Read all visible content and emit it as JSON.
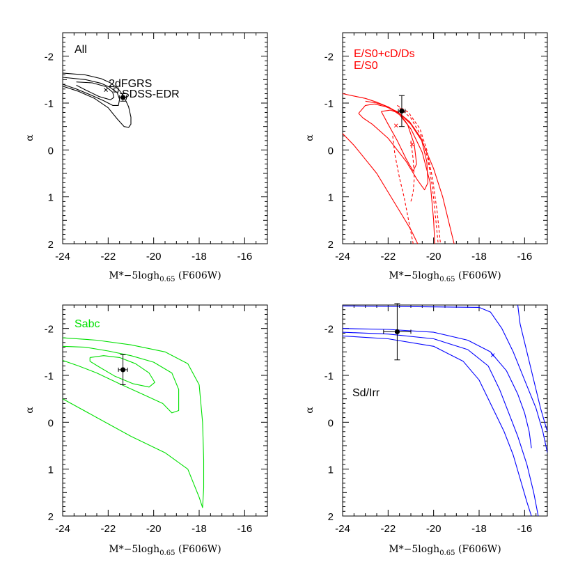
{
  "chart_data": [
    {
      "type": "contour",
      "id": "all",
      "color": "#000000",
      "xlim": [
        -24,
        -15
      ],
      "ylim": [
        2,
        -2.5
      ],
      "xticks": [
        -24,
        -22,
        -20,
        -18,
        -16
      ],
      "yticks": [
        -2,
        -1,
        0,
        1,
        2
      ],
      "xlabel": {
        "main": "M*−5logh",
        "sub": "0.65",
        "suffix": " (F606W)"
      },
      "ylabel": "α",
      "panel_label": {
        "text": "All",
        "color": "#000000"
      },
      "annotations": [
        {
          "text": "2dFGRS",
          "x": -22.1,
          "y": -1.27
        },
        {
          "text": "SDSS-EDR",
          "x": -21.75,
          "y": -1.08
        }
      ],
      "best_fit": {
        "x": -22.1,
        "y": -1.28
      },
      "open_square": {
        "x": -21.65,
        "y": -1.28
      },
      "point": {
        "x": -21.35,
        "y": -1.12,
        "xerr": 0.15,
        "yerr": 0.08
      },
      "contours": [
        {
          "style": "solid",
          "points": [
            [
              -24,
              -1.64
            ],
            [
              -23,
              -1.6
            ],
            [
              -22.3,
              -1.52
            ],
            [
              -21.9,
              -1.43
            ],
            [
              -21.55,
              -1.3
            ],
            [
              -21.3,
              -1.13
            ],
            [
              -21.1,
              -0.92
            ],
            [
              -21.0,
              -0.7
            ],
            [
              -21.0,
              -0.55
            ],
            [
              -21.1,
              -0.48
            ],
            [
              -21.3,
              -0.5
            ],
            [
              -21.6,
              -0.66
            ],
            [
              -22.0,
              -0.9
            ],
            [
              -22.6,
              -1.1
            ],
            [
              -23.3,
              -1.25
            ],
            [
              -24,
              -1.36
            ]
          ]
        },
        {
          "style": "solid",
          "points": [
            [
              -24,
              -1.55
            ],
            [
              -23,
              -1.5
            ],
            [
              -22.3,
              -1.42
            ],
            [
              -21.9,
              -1.33
            ],
            [
              -21.6,
              -1.22
            ],
            [
              -21.5,
              -1.08
            ],
            [
              -21.55,
              -0.95
            ],
            [
              -21.8,
              -0.95
            ],
            [
              -22.2,
              -1.05
            ],
            [
              -22.8,
              -1.18
            ],
            [
              -23.4,
              -1.3
            ],
            [
              -24,
              -1.4
            ]
          ]
        },
        {
          "style": "solid",
          "points": [
            [
              -23.4,
              -1.45
            ],
            [
              -22.7,
              -1.43
            ],
            [
              -22.1,
              -1.35
            ],
            [
              -21.8,
              -1.23
            ],
            [
              -21.75,
              -1.12
            ],
            [
              -21.9,
              -1.07
            ],
            [
              -22.4,
              -1.14
            ],
            [
              -23.0,
              -1.28
            ],
            [
              -23.4,
              -1.38
            ]
          ]
        }
      ]
    },
    {
      "type": "contour",
      "id": "es0",
      "color": "#ff0000",
      "xlim": [
        -24,
        -15
      ],
      "ylim": [
        2,
        -2.5
      ],
      "xticks": [
        -24,
        -22,
        -20,
        -18,
        -16
      ],
      "yticks": [
        -2,
        -1,
        0,
        1,
        2
      ],
      "xlabel": {
        "main": "M*−5logh",
        "sub": "0.65",
        "suffix": " (F606W)"
      },
      "ylabel": "α",
      "legend": [
        {
          "text": "E/S0+cD/Ds",
          "color": "#ff0000"
        },
        {
          "text": "E/S0",
          "color": "#ff0000"
        }
      ],
      "best_fit": [
        {
          "x": -21.65,
          "y": -0.52
        },
        {
          "x": -20.95,
          "y": -0.12
        }
      ],
      "point": {
        "x": -21.4,
        "y": -0.83,
        "xerr": 0.15,
        "yerr": 0.33
      },
      "contours": [
        {
          "style": "solid",
          "points": [
            [
              -24,
              -1.2
            ],
            [
              -23.5,
              -1.15
            ],
            [
              -23,
              -1.1
            ],
            [
              -22.5,
              -1.02
            ],
            [
              -22,
              -0.92
            ],
            [
              -21.5,
              -0.78
            ],
            [
              -21,
              -0.55
            ],
            [
              -20.5,
              -0.18
            ],
            [
              -20.0,
              0.4
            ],
            [
              -19.6,
              1.0
            ],
            [
              -19.3,
              1.6
            ],
            [
              -19.1,
              2.0
            ]
          ]
        },
        {
          "style": "solid",
          "points": [
            [
              -24,
              -0.35
            ],
            [
              -23.5,
              -0.1
            ],
            [
              -23,
              0.2
            ],
            [
              -22.5,
              0.5
            ],
            [
              -22,
              0.9
            ],
            [
              -21.5,
              1.3
            ],
            [
              -21.0,
              1.7
            ],
            [
              -20.7,
              2.0
            ]
          ]
        },
        {
          "style": "solid",
          "points": [
            [
              -23.0,
              -1.04
            ],
            [
              -22.5,
              -1.0
            ],
            [
              -22,
              -0.92
            ],
            [
              -21.5,
              -0.75
            ],
            [
              -21.0,
              -0.45
            ],
            [
              -20.5,
              0.05
            ],
            [
              -20.15,
              0.7
            ],
            [
              -20.0,
              1.5
            ],
            [
              -19.95,
              2.0
            ]
          ]
        },
        {
          "style": "solid",
          "points": [
            [
              -23.3,
              -0.78
            ],
            [
              -23.0,
              -0.95
            ],
            [
              -22.6,
              -0.98
            ],
            [
              -22.1,
              -0.92
            ],
            [
              -21.6,
              -0.82
            ],
            [
              -21.05,
              -0.6
            ],
            [
              -20.55,
              -0.25
            ],
            [
              -20.3,
              0.25
            ],
            [
              -20.25,
              0.7
            ],
            [
              -20.4,
              0.85
            ],
            [
              -20.7,
              0.65
            ],
            [
              -21.2,
              0.25
            ],
            [
              -22.0,
              -0.25
            ],
            [
              -22.7,
              -0.55
            ],
            [
              -23.1,
              -0.68
            ],
            [
              -23.3,
              -0.78
            ]
          ]
        },
        {
          "style": "solid",
          "points": [
            [
              -22.3,
              -0.82
            ],
            [
              -21.9,
              -0.85
            ],
            [
              -21.5,
              -0.78
            ],
            [
              -21.15,
              -0.55
            ],
            [
              -20.85,
              -0.12
            ],
            [
              -20.75,
              0.3
            ],
            [
              -20.9,
              0.45
            ],
            [
              -21.2,
              0.2
            ],
            [
              -21.6,
              -0.2
            ],
            [
              -22.0,
              -0.55
            ],
            [
              -22.3,
              -0.82
            ]
          ]
        },
        {
          "style": "dashed",
          "points": [
            [
              -21.6,
              -0.95
            ],
            [
              -21.1,
              -0.8
            ],
            [
              -20.6,
              -0.45
            ],
            [
              -20.3,
              0.0
            ],
            [
              -20.05,
              0.6
            ],
            [
              -19.85,
              1.3
            ],
            [
              -19.7,
              2.0
            ]
          ]
        },
        {
          "style": "dashed",
          "points": [
            [
              -21.5,
              -0.9
            ],
            [
              -21.0,
              -0.68
            ],
            [
              -20.55,
              -0.3
            ],
            [
              -20.25,
              0.2
            ],
            [
              -20.05,
              0.8
            ],
            [
              -19.9,
              1.5
            ],
            [
              -19.8,
              2.0
            ]
          ]
        },
        {
          "style": "dashed",
          "points": [
            [
              -21.8,
              -0.3
            ],
            [
              -21.7,
              0.1
            ],
            [
              -21.5,
              0.6
            ],
            [
              -21.3,
              1.0
            ],
            [
              -21.1,
              1.5
            ],
            [
              -20.9,
              2.0
            ]
          ]
        },
        {
          "style": "dashed",
          "points": [
            [
              -21.0,
              -0.2
            ],
            [
              -20.9,
              0.2
            ],
            [
              -20.85,
              0.6
            ],
            [
              -20.9,
              0.9
            ],
            [
              -21.0,
              1.1
            ]
          ]
        }
      ]
    },
    {
      "type": "contour",
      "id": "sabc",
      "color": "#00e000",
      "xlim": [
        -24,
        -15
      ],
      "ylim": [
        2,
        -2.5
      ],
      "xticks": [
        -24,
        -22,
        -20,
        -18,
        -16
      ],
      "yticks": [
        -2,
        -1,
        0,
        1,
        2
      ],
      "xlabel": {
        "main": "M*−5logh",
        "sub": "0.65",
        "suffix": " (F606W)"
      },
      "ylabel": "α",
      "panel_label": {
        "text": "Sabc",
        "color": "#00e000"
      },
      "point": {
        "x": -21.35,
        "y": -1.12,
        "xerr": 0.2,
        "yerr": 0.32
      },
      "contours": [
        {
          "style": "solid",
          "points": [
            [
              -24,
              -1.8
            ],
            [
              -22.5,
              -1.75
            ],
            [
              -21,
              -1.65
            ],
            [
              -19.5,
              -1.5
            ],
            [
              -18.5,
              -1.25
            ],
            [
              -18.0,
              -0.8
            ],
            [
              -17.85,
              0.0
            ],
            [
              -17.8,
              0.8
            ],
            [
              -17.8,
              1.4
            ],
            [
              -17.85,
              1.82
            ],
            [
              -18.0,
              1.6
            ],
            [
              -18.5,
              1.0
            ],
            [
              -19.5,
              0.65
            ],
            [
              -21.0,
              0.3
            ],
            [
              -22.5,
              -0.1
            ],
            [
              -24,
              -0.5
            ]
          ]
        },
        {
          "style": "solid",
          "points": [
            [
              -24,
              -1.62
            ],
            [
              -23,
              -1.6
            ],
            [
              -22,
              -1.52
            ],
            [
              -21,
              -1.42
            ],
            [
              -20,
              -1.28
            ],
            [
              -19.2,
              -1.05
            ],
            [
              -18.9,
              -0.7
            ],
            [
              -18.9,
              -0.25
            ],
            [
              -19.2,
              -0.2
            ],
            [
              -19.6,
              -0.4
            ],
            [
              -20.5,
              -0.6
            ],
            [
              -21.5,
              -0.82
            ],
            [
              -22.5,
              -1.05
            ],
            [
              -23.3,
              -1.2
            ],
            [
              -24,
              -1.32
            ]
          ]
        },
        {
          "style": "solid",
          "points": [
            [
              -22.8,
              -1.38
            ],
            [
              -22.2,
              -1.42
            ],
            [
              -21.5,
              -1.38
            ],
            [
              -20.8,
              -1.25
            ],
            [
              -20.2,
              -1.05
            ],
            [
              -19.95,
              -0.85
            ],
            [
              -20.2,
              -0.75
            ],
            [
              -20.9,
              -0.82
            ],
            [
              -21.7,
              -0.98
            ],
            [
              -22.4,
              -1.18
            ],
            [
              -22.8,
              -1.3
            ],
            [
              -22.8,
              -1.38
            ]
          ]
        }
      ]
    },
    {
      "type": "contour",
      "id": "sdirr",
      "color": "#0000ff",
      "xlim": [
        -24,
        -15
      ],
      "ylim": [
        2,
        -2.5
      ],
      "xticks": [
        -24,
        -22,
        -20,
        -18,
        -16
      ],
      "yticks": [
        -2,
        -1,
        0,
        1,
        2
      ],
      "xlabel": {
        "main": "M*−5logh",
        "sub": "0.65",
        "suffix": " (F606W)"
      },
      "ylabel": "α",
      "panel_label": {
        "text": "Sd/Irr",
        "color": "#000000"
      },
      "best_fit": {
        "x": -17.4,
        "y": -1.43
      },
      "point": {
        "x": -21.6,
        "y": -1.93,
        "xerr": 0.6,
        "yerr": 0.6
      },
      "contours": [
        {
          "style": "solid",
          "points": [
            [
              -24,
              -2.48
            ],
            [
              -20,
              -2.46
            ],
            [
              -18,
              -2.45
            ],
            [
              -17.5,
              -2.35
            ],
            [
              -17,
              -2.0
            ],
            [
              -16.5,
              -1.5
            ],
            [
              -16.0,
              -0.9
            ],
            [
              -15.5,
              -0.3
            ],
            [
              -15.2,
              0.2
            ],
            [
              -15.0,
              0.65
            ]
          ]
        },
        {
          "style": "solid",
          "points": [
            [
              -16.3,
              -2.5
            ],
            [
              -16.2,
              -2.1
            ],
            [
              -15.9,
              -1.5
            ],
            [
              -15.6,
              -0.9
            ],
            [
              -15.3,
              -0.3
            ],
            [
              -15.0,
              0.2
            ]
          ]
        },
        {
          "style": "solid",
          "points": [
            [
              -24,
              -2.0
            ],
            [
              -22,
              -1.98
            ],
            [
              -20,
              -1.92
            ],
            [
              -18.5,
              -1.75
            ],
            [
              -17.5,
              -1.5
            ],
            [
              -16.8,
              -1.1
            ],
            [
              -16.3,
              -0.6
            ],
            [
              -16.0,
              -0.2
            ],
            [
              -15.8,
              0.2
            ],
            [
              -15.7,
              0.55
            ]
          ]
        },
        {
          "style": "solid",
          "points": [
            [
              -24,
              -1.92
            ],
            [
              -22,
              -1.88
            ],
            [
              -20,
              -1.78
            ],
            [
              -18.5,
              -1.55
            ],
            [
              -17.6,
              -1.2
            ],
            [
              -17.1,
              -0.7
            ],
            [
              -16.7,
              -0.2
            ],
            [
              -16.3,
              0.3
            ],
            [
              -15.9,
              0.9
            ],
            [
              -15.6,
              1.5
            ],
            [
              -15.4,
              2.0
            ]
          ]
        },
        {
          "style": "solid",
          "points": [
            [
              -24,
              -1.84
            ],
            [
              -22,
              -1.78
            ],
            [
              -20,
              -1.62
            ],
            [
              -18.7,
              -1.3
            ],
            [
              -18.0,
              -0.9
            ],
            [
              -17.4,
              -0.3
            ],
            [
              -16.9,
              0.2
            ],
            [
              -16.5,
              0.7
            ],
            [
              -16.2,
              1.2
            ],
            [
              -15.9,
              1.7
            ],
            [
              -15.7,
              2.0
            ]
          ]
        }
      ]
    }
  ]
}
